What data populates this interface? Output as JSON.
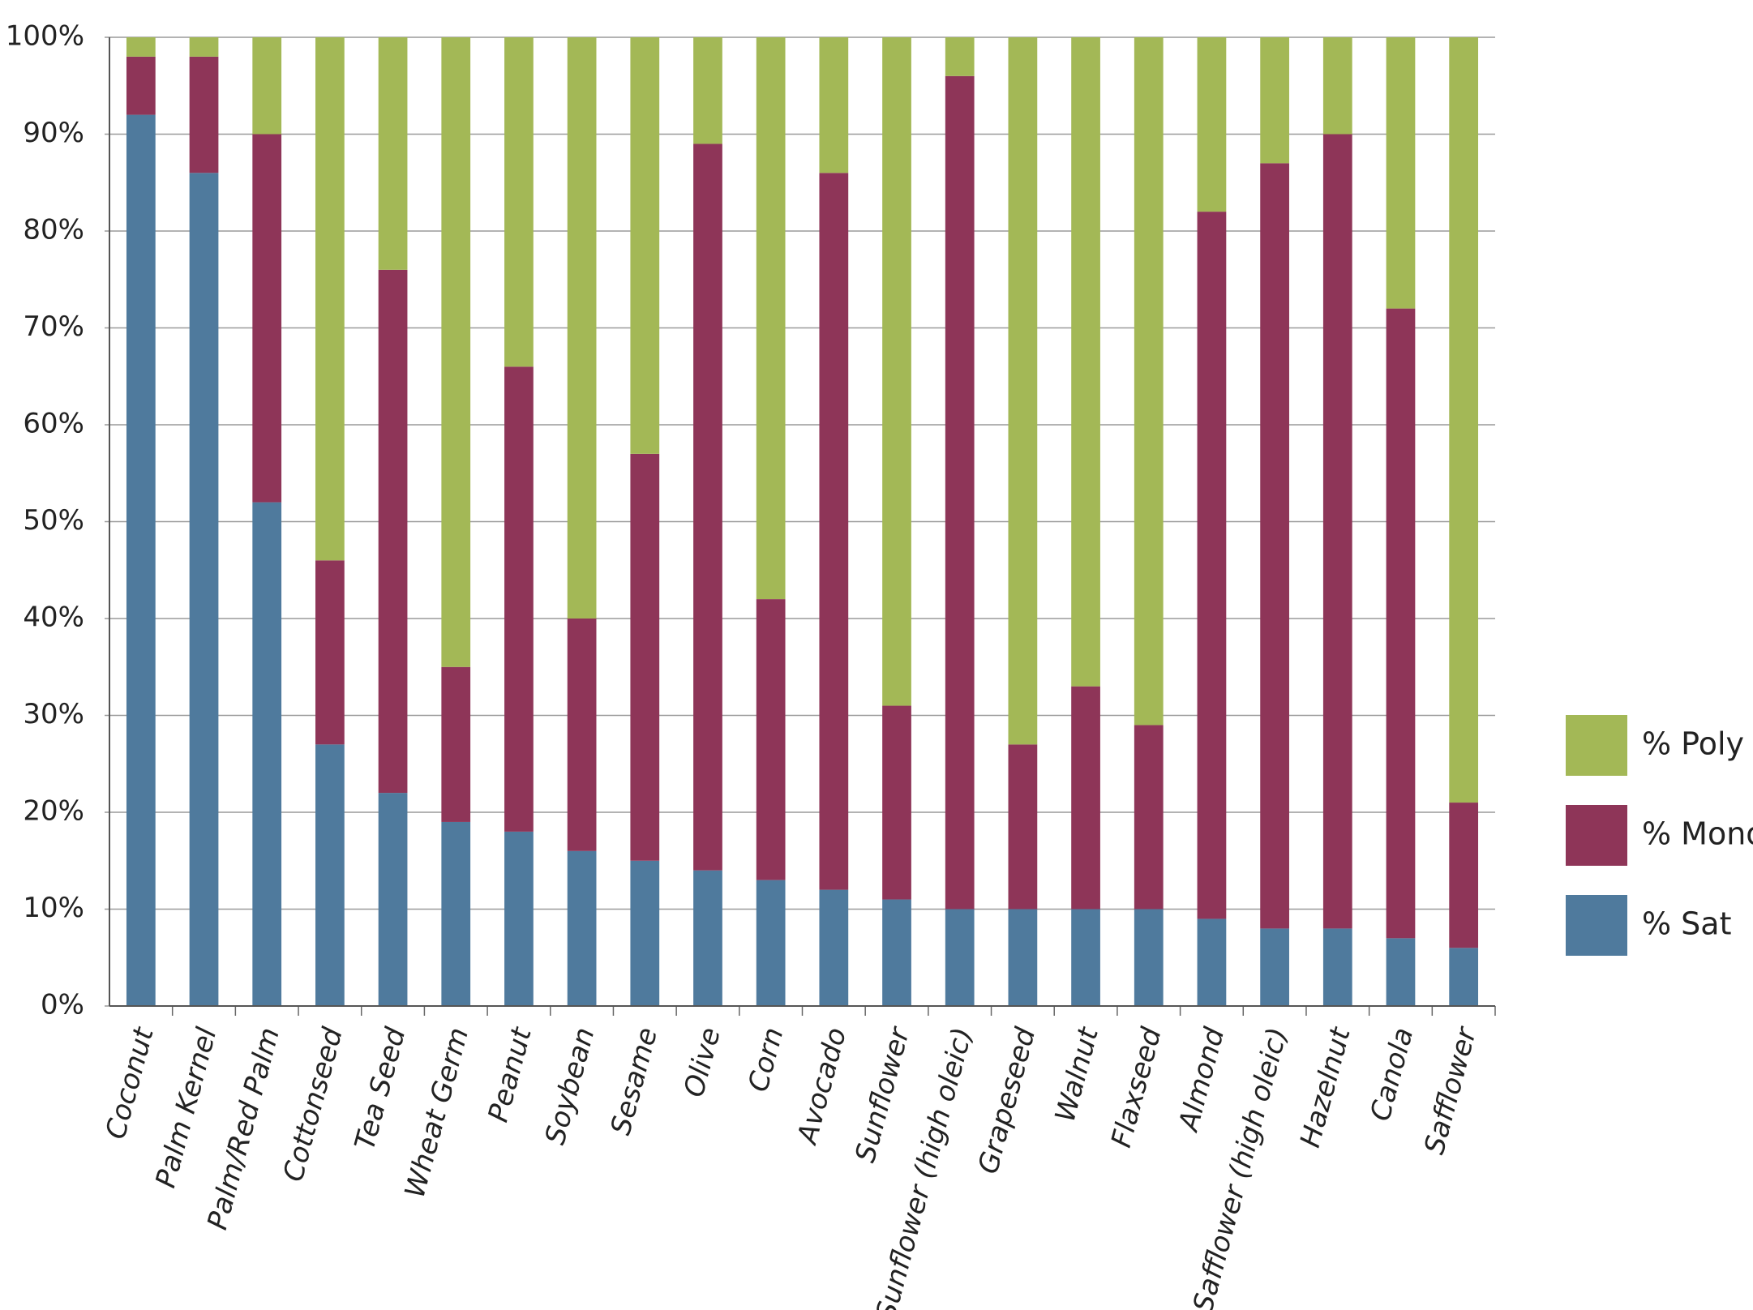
{
  "chart_data": {
    "type": "stacked_bar",
    "categories": [
      "Coconut",
      "Palm Kernel",
      "Palm/Red Palm",
      "Cottonseed",
      "Tea Seed",
      "Wheat Germ",
      "Peanut",
      "Soybean",
      "Sesame",
      "Olive",
      "Corn",
      "Avocado",
      "Sunflower",
      "Sunflower (high oleic)",
      "Grapeseed",
      "Walnut",
      "Flaxseed",
      "Almond",
      "Safflower (high oleic)",
      "Hazelnut",
      "Canola",
      "Safflower"
    ],
    "series": [
      {
        "name": "% Sat",
        "color": "#4f7a9d",
        "values": [
          92,
          86,
          52,
          27,
          22,
          19,
          18,
          16,
          15,
          14,
          13,
          12,
          11,
          10,
          10,
          10,
          10,
          9,
          8,
          8,
          7,
          6
        ]
      },
      {
        "name": "% Mono",
        "color": "#8e3558",
        "values": [
          6,
          12,
          38,
          19,
          54,
          16,
          48,
          24,
          42,
          75,
          29,
          74,
          20,
          86,
          17,
          23,
          19,
          73,
          79,
          82,
          65,
          15
        ]
      },
      {
        "name": "% Poly",
        "color": "#a3b856",
        "values": [
          2,
          2,
          10,
          54,
          24,
          65,
          34,
          60,
          43,
          11,
          58,
          14,
          69,
          4,
          73,
          67,
          71,
          18,
          13,
          10,
          28,
          79
        ]
      }
    ],
    "ylim": [
      0,
      100
    ],
    "yticks": [
      {
        "value": 0,
        "label": "0%"
      },
      {
        "value": 10,
        "label": "10%"
      },
      {
        "value": 20,
        "label": "20%"
      },
      {
        "value": 30,
        "label": "30%"
      },
      {
        "value": 40,
        "label": "40%"
      },
      {
        "value": 50,
        "label": "50%"
      },
      {
        "value": 60,
        "label": "60%"
      },
      {
        "value": 70,
        "label": "70%"
      },
      {
        "value": 80,
        "label": "80%"
      },
      {
        "value": 90,
        "label": "90%"
      },
      {
        "value": 100,
        "label": "100%"
      }
    ],
    "grid": true,
    "legend": "right"
  }
}
